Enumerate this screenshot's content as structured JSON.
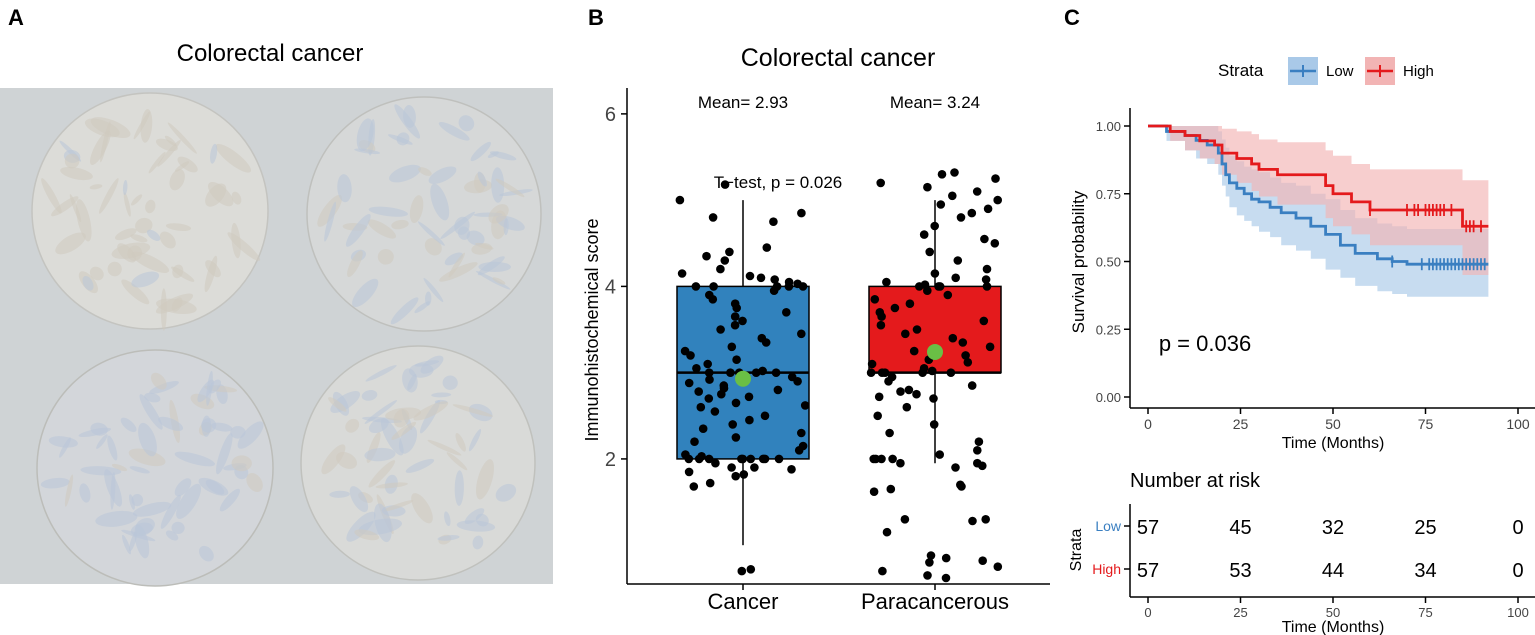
{
  "panels": {
    "a": {
      "letter": "A",
      "title": "Colorectal cancer"
    },
    "b": {
      "letter": "B"
    },
    "c": {
      "letter": "C"
    }
  },
  "colors": {
    "low": "#3a7fc1",
    "high": "#e41a1c",
    "low_band": "#a9c9e8",
    "high_band": "#f2b4b4",
    "box_cancer": "#3182bd",
    "box_para": "#e41a1c",
    "mean_dot": "#6abf45",
    "tissue": "#d9dadc",
    "slide": "#cfd3d5"
  },
  "chart_data": [
    {
      "type": "box",
      "title": "Colorectal cancer",
      "xlabel": "",
      "ylabel": "Immunohistochemical score",
      "ylim": [
        0.55,
        6.3
      ],
      "yticks": [
        2,
        4,
        6
      ],
      "categories": [
        "Cancer",
        "Paracancerous"
      ],
      "boxes": [
        {
          "name": "Cancer",
          "min": 1.0,
          "q1": 2.0,
          "median": 3.0,
          "q3": 4.0,
          "max": 5.0,
          "mean": 2.93,
          "mean_label": "Mean= 2.93"
        },
        {
          "name": "Paracancerous",
          "min": 1.95,
          "q1": 3.0,
          "median": 3.0,
          "q3": 4.0,
          "max": 5.0,
          "mean": 3.24,
          "mean_label": "Mean= 3.24"
        }
      ],
      "points": {
        "Cancer": [
          0.7,
          0.72,
          1.68,
          1.72,
          1.8,
          1.82,
          1.85,
          1.88,
          1.9,
          1.9,
          1.95,
          2.0,
          2.0,
          2.0,
          2.0,
          2.0,
          2.0,
          2.0,
          2.0,
          2.0,
          2.03,
          2.05,
          2.1,
          2.15,
          2.2,
          2.25,
          2.3,
          2.35,
          2.4,
          2.45,
          2.5,
          2.55,
          2.6,
          2.62,
          2.65,
          2.7,
          2.72,
          2.75,
          2.78,
          2.8,
          2.82,
          2.85,
          2.88,
          2.9,
          2.92,
          2.95,
          3.0,
          3.0,
          3.0,
          3.0,
          3.0,
          3.02,
          3.05,
          3.1,
          3.15,
          3.2,
          3.25,
          3.3,
          3.35,
          3.4,
          3.45,
          3.5,
          3.55,
          3.6,
          3.65,
          3.7,
          3.75,
          3.8,
          3.85,
          3.9,
          3.95,
          4.0,
          4.0,
          4.0,
          4.0,
          4.0,
          4.03,
          4.05,
          4.08,
          4.1,
          4.12,
          4.15,
          4.2,
          4.3,
          4.35,
          4.4,
          4.45,
          4.75,
          4.8,
          4.85,
          5.0,
          5.18
        ],
        "Paracancerous": [
          0.62,
          0.65,
          0.7,
          0.75,
          0.8,
          0.82,
          0.85,
          0.88,
          1.15,
          1.28,
          1.3,
          1.3,
          1.62,
          1.65,
          1.68,
          1.7,
          1.9,
          1.92,
          1.95,
          1.95,
          2.0,
          2.0,
          2.0,
          2.0,
          2.05,
          2.1,
          2.2,
          2.3,
          2.4,
          2.5,
          2.6,
          2.7,
          2.72,
          2.75,
          2.78,
          2.8,
          2.85,
          2.9,
          2.95,
          3.0,
          3.0,
          3.0,
          3.0,
          3.0,
          3.02,
          3.05,
          3.1,
          3.12,
          3.15,
          3.2,
          3.25,
          3.3,
          3.35,
          3.4,
          3.45,
          3.5,
          3.55,
          3.6,
          3.65,
          3.7,
          3.75,
          3.8,
          3.85,
          3.9,
          3.95,
          4.0,
          4.0,
          4.0,
          4.0,
          4.02,
          4.05,
          4.08,
          4.1,
          4.15,
          4.2,
          4.3,
          4.4,
          4.5,
          4.55,
          4.6,
          4.7,
          4.8,
          4.85,
          4.9,
          4.95,
          5.0,
          5.05,
          5.1,
          5.15,
          5.2,
          5.25,
          5.3,
          5.32
        ],
        "seed": 7
      },
      "annotations": [
        "T−test, p = 0.026"
      ]
    },
    {
      "type": "line",
      "subtype": "kaplan-meier",
      "title": "",
      "xlabel": "Time (Months)",
      "ylabel": "Survival probability",
      "xlim": [
        0,
        100
      ],
      "ylim": [
        0,
        1.0
      ],
      "xticks": [
        0,
        25,
        50,
        75,
        100
      ],
      "yticks": [
        "0.00",
        "0.25",
        "0.50",
        "0.75",
        "1.00"
      ],
      "legend_title": "Strata",
      "legend_position": "top",
      "pvalue": "p = 0.036",
      "series": [
        {
          "name": "Low",
          "x": [
            0,
            5,
            10,
            13,
            16,
            19,
            20,
            21,
            22,
            24,
            26,
            28,
            30,
            33,
            36,
            40,
            44,
            48,
            52,
            56,
            62,
            66,
            70,
            92
          ],
          "y": [
            1.0,
            0.98,
            0.965,
            0.947,
            0.93,
            0.9,
            0.86,
            0.82,
            0.79,
            0.77,
            0.75,
            0.73,
            0.72,
            0.7,
            0.68,
            0.66,
            0.63,
            0.6,
            0.56,
            0.53,
            0.51,
            0.5,
            0.49,
            0.49
          ],
          "lower": [
            1.0,
            0.945,
            0.91,
            0.88,
            0.86,
            0.82,
            0.78,
            0.74,
            0.7,
            0.67,
            0.65,
            0.63,
            0.61,
            0.59,
            0.56,
            0.54,
            0.51,
            0.47,
            0.44,
            0.41,
            0.39,
            0.38,
            0.37,
            0.37
          ],
          "upper": [
            1.0,
            1.0,
            1.0,
            1.0,
            1.0,
            0.98,
            0.95,
            0.92,
            0.89,
            0.87,
            0.85,
            0.84,
            0.83,
            0.81,
            0.79,
            0.78,
            0.75,
            0.73,
            0.69,
            0.66,
            0.64,
            0.63,
            0.62,
            0.62
          ],
          "censor_x": [
            66,
            74,
            76,
            77,
            78,
            79,
            80,
            81,
            82,
            83,
            84,
            85,
            86,
            87,
            88,
            89,
            90,
            91
          ]
        },
        {
          "name": "High",
          "x": [
            0,
            6,
            10,
            14,
            18,
            20,
            24,
            28,
            30,
            35,
            48,
            50,
            55,
            60,
            85,
            92
          ],
          "y": [
            1.0,
            0.98,
            0.965,
            0.945,
            0.93,
            0.9,
            0.88,
            0.86,
            0.84,
            0.82,
            0.78,
            0.75,
            0.72,
            0.69,
            0.63,
            0.63
          ],
          "lower": [
            1.0,
            0.945,
            0.91,
            0.88,
            0.86,
            0.82,
            0.79,
            0.76,
            0.74,
            0.71,
            0.66,
            0.63,
            0.6,
            0.56,
            0.45,
            0.45
          ],
          "upper": [
            1.0,
            1.0,
            1.0,
            1.0,
            1.0,
            0.99,
            0.98,
            0.97,
            0.95,
            0.94,
            0.91,
            0.89,
            0.86,
            0.84,
            0.8,
            0.8
          ],
          "censor_x": [
            60,
            70,
            72,
            73,
            75,
            76,
            77,
            78,
            79,
            80,
            82,
            86,
            87,
            88,
            90
          ]
        }
      ]
    },
    {
      "type": "table",
      "title": "Number at risk",
      "xlabel": "Time (Months)",
      "ylabel": "Strata",
      "xticks": [
        0,
        25,
        50,
        75,
        100
      ],
      "rows": [
        {
          "name": "Low",
          "values": [
            57,
            45,
            32,
            25,
            0
          ]
        },
        {
          "name": "High",
          "values": [
            57,
            53,
            44,
            34,
            0
          ]
        }
      ]
    }
  ]
}
